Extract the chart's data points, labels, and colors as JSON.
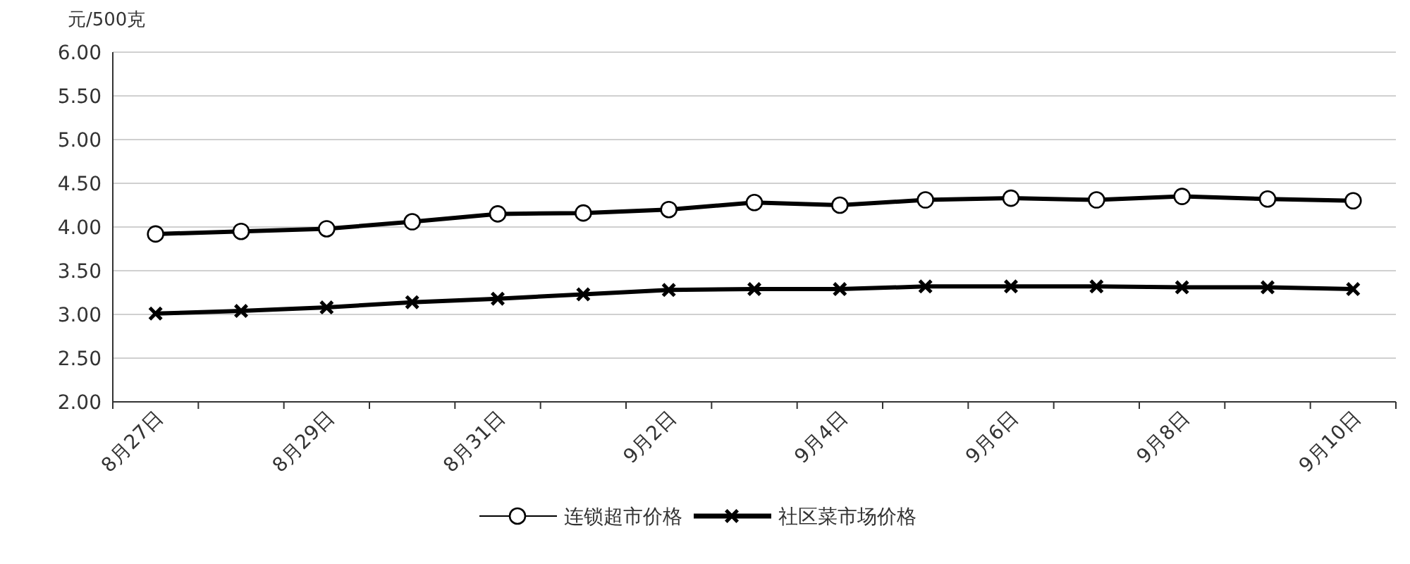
{
  "chart_data": {
    "type": "line",
    "ylabel": "元/500克",
    "categories": [
      "8月27日",
      null,
      "8月29日",
      null,
      "8月31日",
      null,
      "9月2日",
      null,
      "9月4日",
      null,
      "9月6日",
      null,
      "9月8日",
      null,
      "9月10日"
    ],
    "series": [
      {
        "name": "连锁超市价格",
        "color": "#000000",
        "marker": "circle",
        "values": [
          3.92,
          3.95,
          3.98,
          4.06,
          4.15,
          4.16,
          4.2,
          4.28,
          4.25,
          4.31,
          4.33,
          4.31,
          4.35,
          4.32,
          4.3
        ]
      },
      {
        "name": "社区菜市场价格",
        "color": "#000000",
        "marker": "cross",
        "values": [
          3.01,
          3.04,
          3.08,
          3.14,
          3.18,
          3.23,
          3.28,
          3.29,
          3.29,
          3.32,
          3.32,
          3.32,
          3.31,
          3.31,
          3.29
        ]
      }
    ],
    "ylim": [
      2,
      6
    ],
    "yticks": [
      {
        "value": 2,
        "label": "2.00"
      },
      {
        "value": 2.5,
        "label": "2.50"
      },
      {
        "value": 3,
        "label": "3.00"
      },
      {
        "value": 3.5,
        "label": "3.50"
      },
      {
        "value": 4,
        "label": "4.00"
      },
      {
        "value": 4.5,
        "label": "4.50"
      },
      {
        "value": 5,
        "label": "5.00"
      },
      {
        "value": 5.5,
        "label": "5.50"
      },
      {
        "value": 6,
        "label": "6.00"
      }
    ],
    "grid": "y",
    "legend": "bottom",
    "line_style": "solid"
  }
}
